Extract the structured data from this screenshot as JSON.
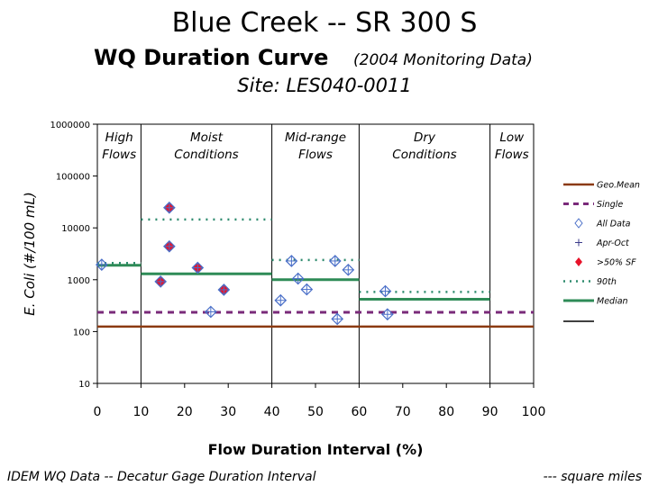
{
  "title": {
    "line1": "Blue Creek -- SR 300 S",
    "line2_main": "WQ Duration Curve",
    "line2_sub": "(2004 Monitoring Data)",
    "line3": "Site:  LES040-0011"
  },
  "footer": {
    "left": "IDEM WQ Data -- Decatur Gage Duration Interval",
    "right": "--- square miles"
  },
  "chart_data": {
    "type": "scatter",
    "xlabel": "Flow Duration Interval (%)",
    "ylabel": "E. Coli (#/100 mL)",
    "xlim": [
      0,
      100
    ],
    "ylim": [
      10,
      1000000
    ],
    "yscale": "log",
    "x_ticks": [
      0,
      10,
      20,
      30,
      40,
      50,
      60,
      70,
      80,
      90,
      100
    ],
    "y_ticks": [
      10,
      100,
      1000,
      10000,
      100000,
      1000000
    ],
    "y_tick_labels": [
      "10",
      "100",
      "1000",
      "10000",
      "100000",
      "1000000"
    ],
    "zone_boundaries": [
      10,
      40,
      60,
      90
    ],
    "zones": [
      {
        "label_lines": [
          "High",
          "Flows"
        ],
        "center": 5
      },
      {
        "label_lines": [
          "Moist",
          "Conditions"
        ],
        "center": 25
      },
      {
        "label_lines": [
          "Mid-range",
          "Flows"
        ],
        "center": 50
      },
      {
        "label_lines": [
          "Dry",
          "Conditions"
        ],
        "center": 75
      },
      {
        "label_lines": [
          "Low",
          "Flows"
        ],
        "center": 95
      }
    ],
    "geo_mean": {
      "name": "Geo.Mean",
      "value": 125,
      "color": "#8b3a10"
    },
    "single": {
      "name": "Single",
      "value": 235,
      "color": "#7a2a7a"
    },
    "ninetieth": {
      "name": "90th",
      "color": "#2e8b6e",
      "segments": [
        {
          "x": [
            0,
            10
          ],
          "y": 2100
        },
        {
          "x": [
            10,
            40
          ],
          "y": 14500
        },
        {
          "x": [
            40,
            60
          ],
          "y": 2400
        },
        {
          "x": [
            60,
            90
          ],
          "y": 580
        }
      ]
    },
    "median": {
      "name": "Median",
      "color": "#2e8b57",
      "segments": [
        {
          "x": [
            0,
            10
          ],
          "y": 1900
        },
        {
          "x": [
            10,
            40
          ],
          "y": 1300
        },
        {
          "x": [
            40,
            60
          ],
          "y": 1000
        },
        {
          "x": [
            60,
            90
          ],
          "y": 420
        }
      ]
    },
    "series": [
      {
        "name": "All Data",
        "marker": "diamond-cross",
        "color": "#4a6fc8",
        "points": [
          {
            "x": 1,
            "y": 1950,
            "sf": false
          },
          {
            "x": 14.5,
            "y": 920,
            "sf": true
          },
          {
            "x": 16.5,
            "y": 24500,
            "sf": true
          },
          {
            "x": 16.5,
            "y": 4400,
            "sf": true
          },
          {
            "x": 23,
            "y": 1700,
            "sf": true
          },
          {
            "x": 26,
            "y": 240,
            "sf": false
          },
          {
            "x": 29,
            "y": 640,
            "sf": true
          },
          {
            "x": 42,
            "y": 400,
            "sf": false
          },
          {
            "x": 44.5,
            "y": 2300,
            "sf": false
          },
          {
            "x": 46,
            "y": 1050,
            "sf": false
          },
          {
            "x": 48,
            "y": 650,
            "sf": false
          },
          {
            "x": 54.5,
            "y": 2300,
            "sf": false
          },
          {
            "x": 55,
            "y": 175,
            "sf": false
          },
          {
            "x": 57.5,
            "y": 1550,
            "sf": false
          },
          {
            "x": 66,
            "y": 600,
            "sf": false
          },
          {
            "x": 66.5,
            "y": 215,
            "sf": false
          }
        ]
      }
    ],
    "legend": {
      "position": "right",
      "entries": [
        "Geo.Mean",
        "Single",
        "All Data",
        "Apr-Oct",
        ">50% SF",
        "90th",
        "Median"
      ]
    },
    "sf_color": "#e8132a"
  }
}
